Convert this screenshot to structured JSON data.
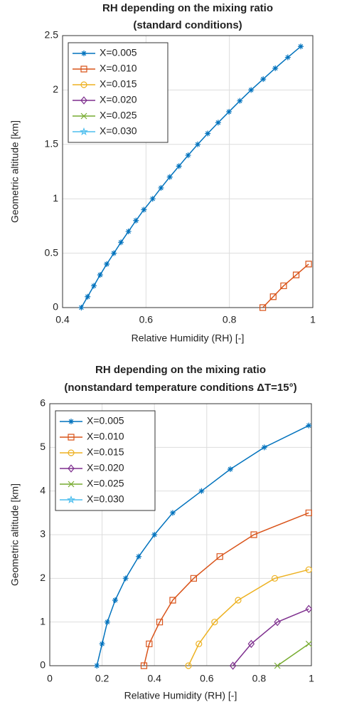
{
  "chart_data": [
    {
      "type": "line",
      "title": "RH depending on the mixing ratio",
      "subtitle": "(standard conditions)",
      "xlabel": "Relative Humidity (RH) [-]",
      "ylabel": "Geometric altitude [km]",
      "xlim": [
        0.4,
        1
      ],
      "ylim": [
        0,
        2.5
      ],
      "xticks": [
        0.4,
        0.6,
        0.8,
        1
      ],
      "yticks": [
        0,
        0.5,
        1,
        1.5,
        2,
        2.5
      ],
      "grid": true,
      "legend": "upper left",
      "series": [
        {
          "name": "X=0.005",
          "color": "#0072bd",
          "marker": "asterisk",
          "x": [
            0.445,
            0.46,
            0.475,
            0.49,
            0.506,
            0.523,
            0.54,
            0.558,
            0.576,
            0.595,
            0.616,
            0.636,
            0.657,
            0.679,
            0.701,
            0.724,
            0.748,
            0.773,
            0.799,
            0.825,
            0.852,
            0.881,
            0.91,
            0.94,
            0.971
          ],
          "y": [
            0,
            0.1,
            0.2,
            0.3,
            0.4,
            0.5,
            0.6,
            0.7,
            0.8,
            0.9,
            1,
            1.1,
            1.2,
            1.3,
            1.4,
            1.5,
            1.6,
            1.7,
            1.8,
            1.9,
            2,
            2.1,
            2.2,
            2.3,
            2.4
          ]
        },
        {
          "name": "X=0.010",
          "color": "#d95319",
          "marker": "square",
          "x": [
            0.88,
            0.905,
            0.93,
            0.96,
            0.99
          ],
          "y": [
            0,
            0.1,
            0.2,
            0.3,
            0.4
          ]
        },
        {
          "name": "X=0.015",
          "color": "#edb120",
          "marker": "circle",
          "x": [],
          "y": []
        },
        {
          "name": "X=0.020",
          "color": "#7e2f8e",
          "marker": "diamond",
          "x": [],
          "y": []
        },
        {
          "name": "X=0.025",
          "color": "#77ac30",
          "marker": "cross",
          "x": [],
          "y": []
        },
        {
          "name": "X=0.030",
          "color": "#4dbeee",
          "marker": "pentagram",
          "x": [],
          "y": []
        }
      ]
    },
    {
      "type": "line",
      "title": "RH depending on the mixing ratio",
      "subtitle": "(nonstandard temperature conditions ΔT=15°)",
      "xlabel": "Relative Humidity (RH) [-]",
      "ylabel": "Geometric altitude [km]",
      "xlim": [
        0,
        1
      ],
      "ylim": [
        0,
        6
      ],
      "xticks": [
        0,
        0.2,
        0.4,
        0.6,
        0.8,
        1
      ],
      "yticks": [
        0,
        1,
        2,
        3,
        4,
        5,
        6
      ],
      "grid": true,
      "legend": "upper left",
      "series": [
        {
          "name": "X=0.005",
          "color": "#0072bd",
          "marker": "asterisk",
          "x": [
            0.18,
            0.2,
            0.22,
            0.25,
            0.29,
            0.34,
            0.4,
            0.47,
            0.58,
            0.69,
            0.82,
            0.99
          ],
          "y": [
            0,
            0.5,
            1,
            1.5,
            2,
            2.5,
            3,
            3.5,
            4,
            4.5,
            5,
            5.5
          ]
        },
        {
          "name": "X=0.010",
          "color": "#d95319",
          "marker": "square",
          "x": [
            0.36,
            0.38,
            0.42,
            0.47,
            0.55,
            0.65,
            0.78,
            0.99
          ],
          "y": [
            0,
            0.5,
            1,
            1.5,
            2,
            2.5,
            3,
            3.5
          ]
        },
        {
          "name": "X=0.015",
          "color": "#edb120",
          "marker": "circle",
          "x": [
            0.53,
            0.57,
            0.63,
            0.72,
            0.86,
            0.99
          ],
          "y": [
            0,
            0.5,
            1,
            1.5,
            2,
            2.2
          ]
        },
        {
          "name": "X=0.020",
          "color": "#7e2f8e",
          "marker": "diamond",
          "x": [
            0.7,
            0.77,
            0.87,
            0.99
          ],
          "y": [
            0,
            0.5,
            1,
            1.3
          ]
        },
        {
          "name": "X=0.025",
          "color": "#77ac30",
          "marker": "cross",
          "x": [
            0.87,
            0.99
          ],
          "y": [
            0,
            0.5
          ]
        },
        {
          "name": "X=0.030",
          "color": "#4dbeee",
          "marker": "pentagram",
          "x": [],
          "y": []
        }
      ]
    }
  ]
}
